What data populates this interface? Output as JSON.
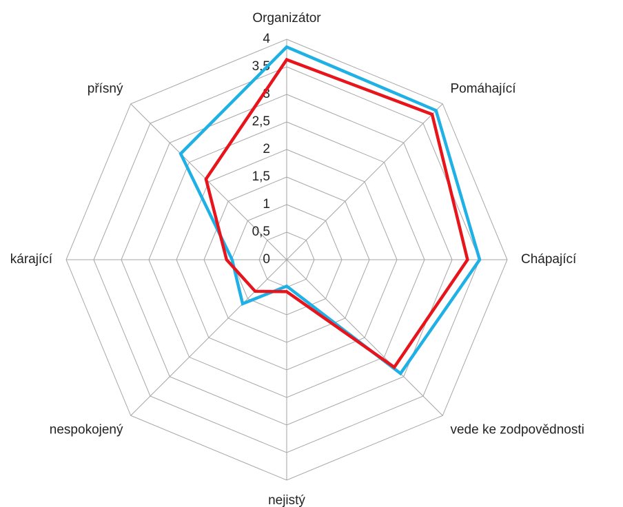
{
  "chart_data": {
    "type": "radar",
    "categories": [
      "Organizátor",
      "Pomáhající",
      "Chápající",
      "vede ke zodpovědnosti",
      "nejistý",
      "nespokojený",
      "kárající",
      "přísný"
    ],
    "series": [
      {
        "color": "#1fb0e6",
        "values": [
          3.86,
          3.83,
          3.5,
          2.92,
          0.48,
          1.13,
          0.99,
          2.72
        ]
      },
      {
        "color": "#e8141b",
        "values": [
          3.63,
          3.73,
          3.28,
          2.76,
          0.58,
          0.81,
          1.09,
          2.07
        ]
      }
    ],
    "ylim": [
      0,
      4
    ],
    "yticks": [
      0,
      {
        "value": 0.5,
        "label": "0,5"
      },
      1,
      {
        "value": 1.5,
        "label": "1,5"
      },
      2,
      {
        "value": 2.5,
        "label": "2,5"
      },
      3,
      {
        "value": 3.5,
        "label": "3,5"
      },
      4
    ],
    "grid": true
  }
}
